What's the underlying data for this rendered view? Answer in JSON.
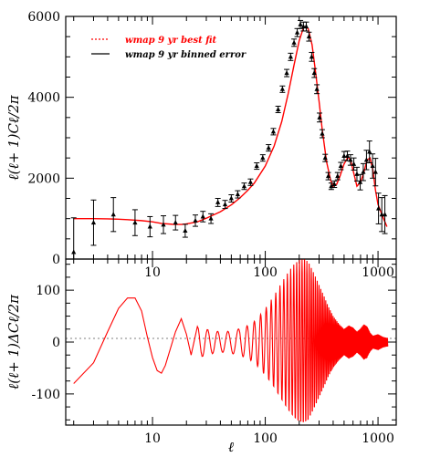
{
  "chart_data": [
    {
      "type": "line",
      "panel": "top",
      "xscale": "log",
      "xlim": [
        1.7,
        1450
      ],
      "ylim": [
        0,
        6000
      ],
      "ylabel": "ℓ(ℓ+ 1)Cℓ/2π",
      "yticks": [
        0,
        2000,
        4000,
        6000
      ],
      "xticks": [
        10,
        100,
        1000
      ],
      "legend_position": "top-left",
      "series": [
        {
          "name": "wmap 9 yr best fit",
          "color": "#ff0000",
          "style": "line",
          "x": [
            2,
            3,
            4,
            5,
            6,
            8,
            10,
            12,
            15,
            18,
            20,
            25,
            30,
            40,
            50,
            60,
            70,
            80,
            100,
            120,
            140,
            160,
            180,
            200,
            220,
            240,
            260,
            280,
            300,
            320,
            350,
            380,
            400,
            430,
            460,
            500,
            540,
            570,
            600,
            650,
            700,
            750,
            800,
            850,
            900,
            950,
            1000,
            1100,
            1200
          ],
          "y": [
            1000,
            1000,
            995,
            985,
            975,
            950,
            920,
            880,
            860,
            855,
            870,
            920,
            1010,
            1170,
            1340,
            1520,
            1700,
            1880,
            2300,
            2800,
            3400,
            4100,
            4800,
            5400,
            5750,
            5700,
            5300,
            4600,
            3900,
            3200,
            2400,
            1950,
            1800,
            1850,
            2050,
            2350,
            2520,
            2450,
            2200,
            1800,
            1900,
            2150,
            2450,
            2500,
            2200,
            1700,
            1350,
            1050,
            800
          ]
        },
        {
          "name": "wmap 9 yr binned error",
          "color": "#000000",
          "style": "errorbar",
          "x": [
            2,
            3,
            4.5,
            7,
            9.5,
            12.5,
            16,
            19.5,
            24,
            28,
            33,
            38,
            44,
            50,
            57,
            65,
            74,
            84,
            95,
            107,
            118,
            130,
            142,
            155,
            168,
            180,
            192,
            205,
            218,
            231,
            244,
            258,
            272,
            287,
            303,
            320,
            340,
            362,
            385,
            410,
            438,
            468,
            500,
            535,
            570,
            610,
            650,
            695,
            740,
            790,
            840,
            895,
            950,
            1010,
            1080,
            1150
          ],
          "y": [
            170,
            900,
            1100,
            900,
            800,
            850,
            900,
            700,
            950,
            1050,
            1000,
            1400,
            1350,
            1500,
            1600,
            1800,
            1900,
            2300,
            2500,
            2750,
            3150,
            3700,
            4200,
            4600,
            5000,
            5350,
            5600,
            5800,
            5750,
            5750,
            5500,
            5000,
            4600,
            4200,
            3500,
            3100,
            2500,
            2050,
            1800,
            1850,
            2050,
            2300,
            2550,
            2550,
            2450,
            2350,
            2100,
            1900,
            2150,
            2450,
            2650,
            2300,
            2150,
            1250,
            1100,
            1100
          ],
          "err": [
            850,
            560,
            420,
            320,
            250,
            220,
            180,
            160,
            140,
            130,
            120,
            100,
            100,
            90,
            90,
            80,
            80,
            80,
            80,
            80,
            80,
            80,
            80,
            90,
            90,
            90,
            100,
            100,
            110,
            110,
            110,
            110,
            110,
            110,
            110,
            100,
            90,
            90,
            80,
            80,
            90,
            90,
            110,
            120,
            130,
            150,
            170,
            190,
            210,
            240,
            270,
            300,
            340,
            380,
            420,
            470
          ]
        }
      ]
    },
    {
      "type": "line",
      "panel": "bottom",
      "xscale": "log",
      "xlim": [
        1.7,
        1450
      ],
      "ylim": [
        -160,
        160
      ],
      "xlabel": "ℓ",
      "ylabel": "ℓ(ℓ+ 1)ΔCℓ/2π",
      "yticks": [
        -100,
        0,
        100
      ],
      "xticks": [
        10,
        100,
        1000
      ],
      "series": [
        {
          "color": "#ff0000",
          "style": "line",
          "oscillation_envelope": {
            "l": [
              2,
              3,
              4,
              5,
              6,
              7,
              8,
              9,
              10,
              11,
              12,
              13,
              15,
              18,
              20,
              22,
              25,
              28,
              30,
              35,
              40,
              45,
              50,
              60,
              70,
              80,
              90,
              100,
              120,
              140,
              160,
              180,
              200,
              220,
              240,
              260,
              280,
              300,
              330,
              360,
              400,
              450,
              500,
              550,
              600,
              650,
              700,
              750,
              800,
              850,
              900,
              1000,
              1100,
              1200
            ],
            "amp": [
              80,
              72,
              65,
              70,
              80,
              85,
              78,
              65,
              55,
              48,
              45,
              44,
              42,
              40,
              38,
              35,
              32,
              28,
              25,
              22,
              20,
              20,
              22,
              26,
              32,
              40,
              52,
              65,
              90,
              115,
              135,
              150,
              158,
              160,
              155,
              140,
              125,
              110,
              90,
              70,
              50,
              35,
              25,
              32,
              28,
              20,
              26,
              34,
              30,
              18,
              12,
              15,
              10,
              8
            ]
          },
          "points": [
            [
              2,
              -80
            ],
            [
              3,
              -40
            ],
            [
              4,
              20
            ],
            [
              5,
              65
            ],
            [
              6,
              85
            ],
            [
              7,
              85
            ],
            [
              8,
              60
            ],
            [
              9,
              10
            ],
            [
              10,
              -30
            ],
            [
              11,
              -55
            ],
            [
              12,
              -60
            ],
            [
              13,
              -45
            ],
            [
              15,
              0
            ],
            [
              16,
              20
            ],
            [
              18,
              45
            ],
            [
              20,
              15
            ],
            [
              22,
              -25
            ],
            [
              25,
              30
            ]
          ]
        }
      ]
    }
  ]
}
